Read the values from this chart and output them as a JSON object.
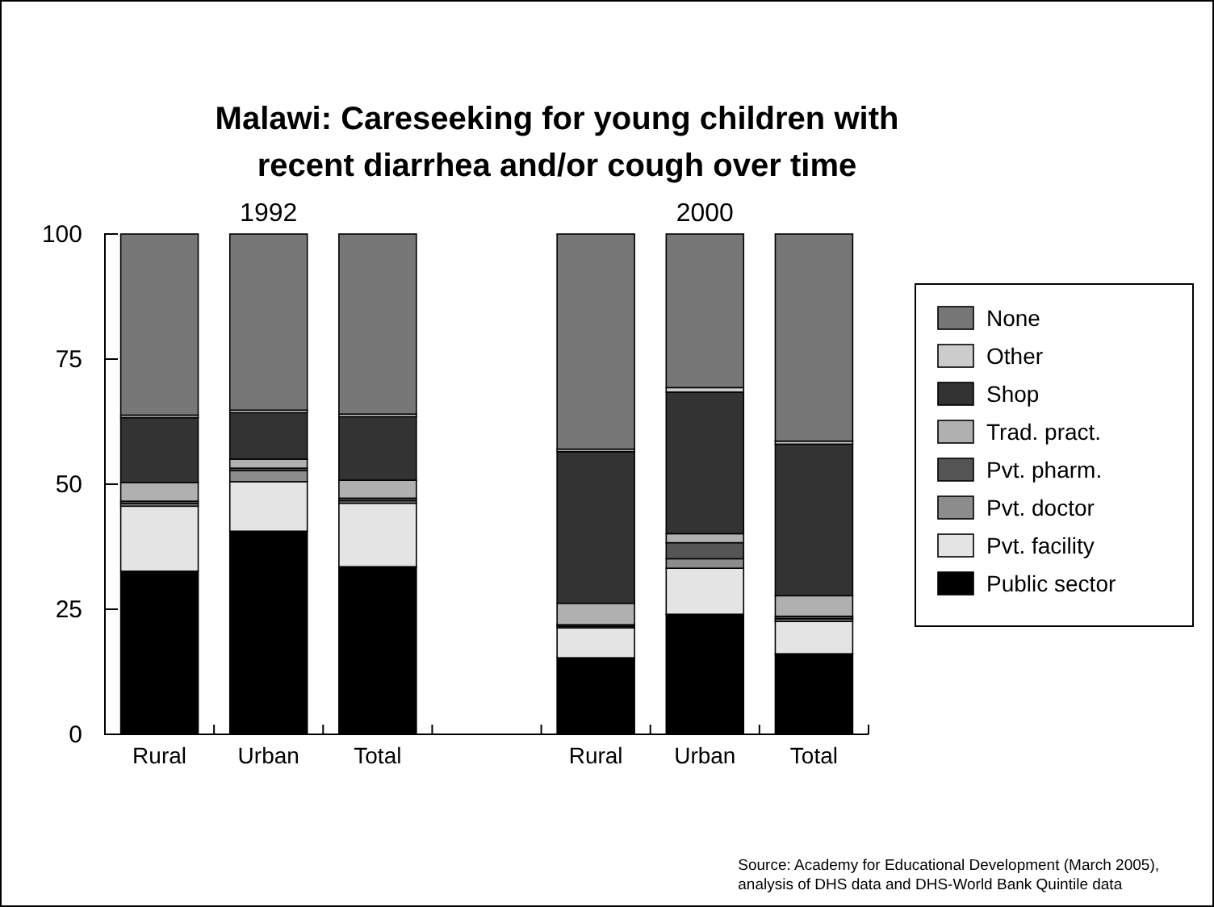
{
  "chart_data": {
    "type": "bar",
    "stacked": true,
    "title": "Malawi: Careseeking for young children with recent diarrhea and/or cough over time",
    "categories": [
      "Rural",
      "Urban",
      "Total",
      null,
      "Rural",
      "Urban",
      "Total"
    ],
    "series": [
      {
        "name": "Public sector",
        "color": "#000000",
        "values": [
          32.6,
          40.6,
          33.5,
          null,
          15.3,
          24,
          16.1
        ]
      },
      {
        "name": "Pvt. facility",
        "color": "#e4e4e4",
        "values": [
          13,
          9.9,
          12.7,
          null,
          6,
          9.2,
          6.5
        ]
      },
      {
        "name": "Pvt. doctor",
        "color": "#8c8c8c",
        "values": [
          0.5,
          2.2,
          0.5,
          null,
          0.3,
          1.9,
          0.5
        ]
      },
      {
        "name": "Pvt. pharm.",
        "color": "#555555",
        "values": [
          0.5,
          0.5,
          0.5,
          null,
          0.3,
          3.2,
          0.5
        ]
      },
      {
        "name": "Trad. pract.",
        "color": "#b0b0b0",
        "values": [
          3.7,
          1.8,
          3.6,
          null,
          4.3,
          1.8,
          4.1
        ]
      },
      {
        "name": "Shop",
        "color": "#333333",
        "values": [
          13,
          9.3,
          12.7,
          null,
          30.3,
          28.3,
          30.3
        ]
      },
      {
        "name": "Other",
        "color": "#cccccc",
        "values": [
          0.5,
          0.5,
          0.5,
          null,
          0.5,
          0.9,
          0.6
        ]
      },
      {
        "name": "None",
        "color": "#777777",
        "values": [
          36.2,
          35.2,
          36,
          null,
          43,
          30.7,
          41.4
        ]
      }
    ],
    "ylim": [
      0,
      100
    ],
    "yticks": [
      0,
      25,
      50,
      75,
      100
    ],
    "grid": false,
    "legend": "right",
    "annotations": [
      "1992",
      "2000",
      "Source: Academy for Educational Development (March 2005), analysis of DHS data and DHS-World Bank Quintile data"
    ]
  }
}
